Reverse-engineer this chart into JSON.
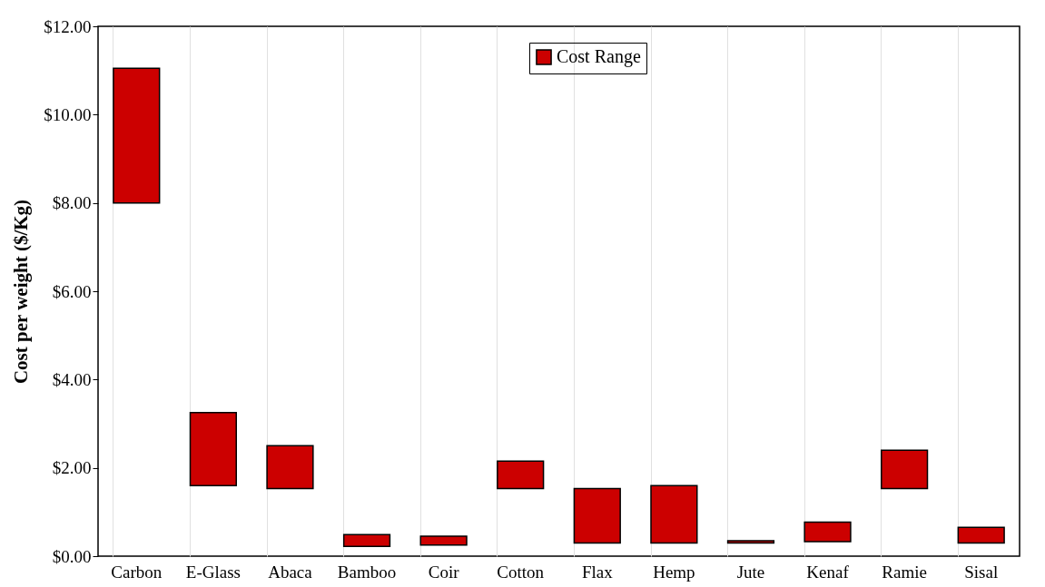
{
  "chart_data": {
    "type": "bar",
    "ylabel": "Cost per weight ($/Kg)",
    "categories": [
      "Carbon",
      "E-Glass",
      "Abaca",
      "Bamboo",
      "Coir",
      "Cotton",
      "Flax",
      "Hemp",
      "Jute",
      "Kenaf",
      "Ramie",
      "Sisal"
    ],
    "series": [
      {
        "name": "Cost Range",
        "color": "#cc0000",
        "values": [
          3.05,
          1.65,
          0.97,
          0.27,
          0.2,
          0.62,
          1.23,
          1.3,
          0.05,
          0.44,
          0.87,
          0.35
        ],
        "base": [
          8.0,
          1.6,
          1.53,
          0.22,
          0.25,
          1.53,
          0.3,
          0.3,
          0.3,
          0.33,
          1.53,
          0.3
        ]
      }
    ],
    "ylim": [
      0,
      12
    ],
    "yticks": [
      {
        "value": 0,
        "label": "$0.00"
      },
      {
        "value": 2,
        "label": "$2.00"
      },
      {
        "value": 4,
        "label": "$4.00"
      },
      {
        "value": 6,
        "label": "$6.00"
      },
      {
        "value": 8,
        "label": "$8.00"
      },
      {
        "value": 10,
        "label": "$10.00"
      },
      {
        "value": 12,
        "label": "$12.00"
      }
    ],
    "grid": "x",
    "legend": "top"
  }
}
